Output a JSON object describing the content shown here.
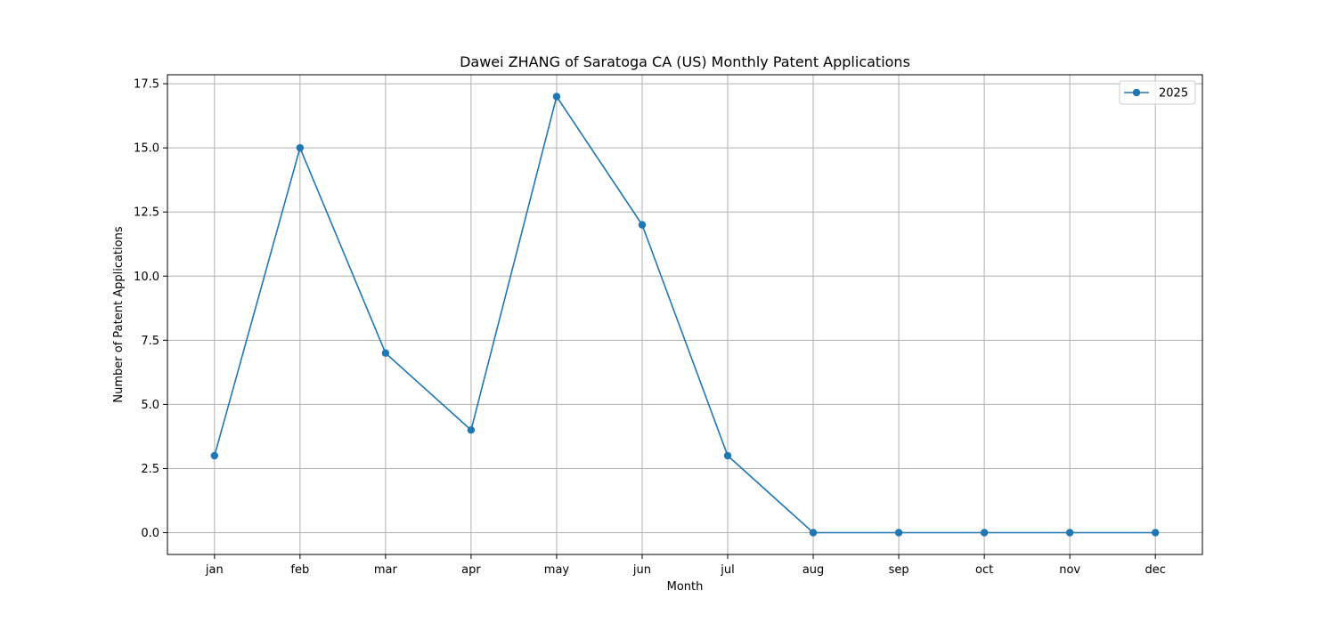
{
  "chart_data": {
    "type": "line",
    "title": "Dawei ZHANG of Saratoga CA (US) Monthly Patent Applications",
    "xlabel": "Month",
    "ylabel": "Number of Patent Applications",
    "categories": [
      "jan",
      "feb",
      "mar",
      "apr",
      "may",
      "jun",
      "jul",
      "aug",
      "sep",
      "oct",
      "nov",
      "dec"
    ],
    "series": [
      {
        "name": "2025",
        "values": [
          3,
          15,
          7,
          4,
          17,
          12,
          3,
          0,
          0,
          0,
          0,
          0
        ],
        "color": "#1f77b4",
        "marker": "circle"
      }
    ],
    "ylim": [
      -0.85,
      17.85
    ],
    "yticks": [
      0.0,
      2.5,
      5.0,
      7.5,
      10.0,
      12.5,
      15.0,
      17.5
    ],
    "ytick_labels": [
      "0.0",
      "2.5",
      "5.0",
      "7.5",
      "10.0",
      "12.5",
      "15.0",
      "17.5"
    ],
    "grid": true,
    "legend": "top-right"
  }
}
